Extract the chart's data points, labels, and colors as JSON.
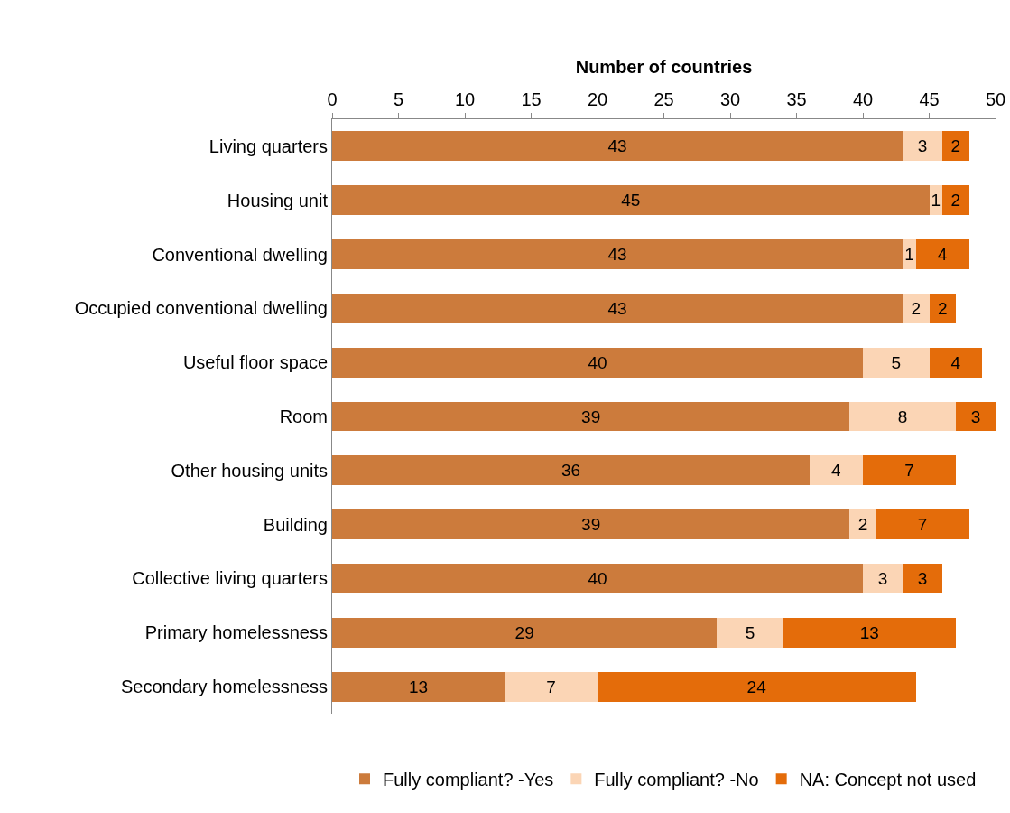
{
  "chart_data": {
    "type": "bar",
    "orientation": "horizontal",
    "stacked": true,
    "xlabel": "Number of countries",
    "categories": [
      "Living quarters",
      "Housing unit",
      "Conventional dwelling",
      "Occupied conventional dwelling",
      "Useful floor space",
      "Room",
      "Other housing units",
      "Building",
      "Collective living quarters",
      "Primary homelessness",
      "Secondary homelessness"
    ],
    "series": [
      {
        "name": "Fully compliant? -Yes",
        "color": "#cc7b3c",
        "values": [
          43,
          45,
          43,
          43,
          40,
          39,
          36,
          39,
          40,
          29,
          13
        ]
      },
      {
        "name": "Fully compliant? -No",
        "color": "#fbd5b5",
        "values": [
          3,
          1,
          1,
          2,
          5,
          8,
          4,
          2,
          3,
          5,
          7
        ]
      },
      {
        "name": "NA: Concept not used",
        "color": "#e46c0a",
        "values": [
          2,
          2,
          4,
          2,
          4,
          3,
          7,
          7,
          3,
          13,
          24
        ]
      }
    ],
    "xlim": [
      0,
      50
    ],
    "xticks": [
      0,
      5,
      10,
      15,
      20,
      25,
      30,
      35,
      40,
      45,
      50
    ],
    "grid": false,
    "legend": "bottom",
    "data_labels": true
  }
}
